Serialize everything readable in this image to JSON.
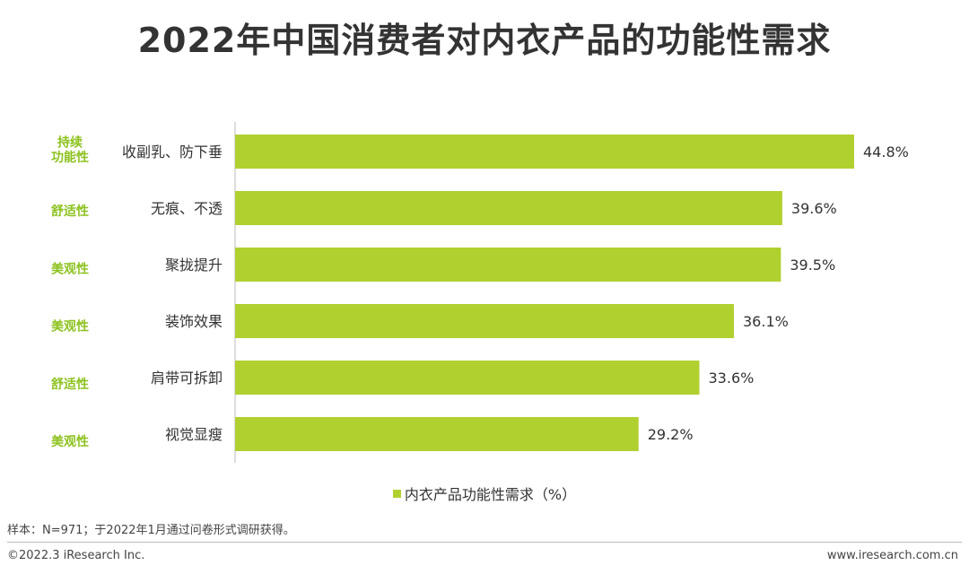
{
  "title": "2022年中国消费者对内衣产品的功能性需求",
  "chart_data": {
    "type": "bar",
    "orientation": "horizontal",
    "categories": [
      "收副乳、防下垂",
      "无痕、不透",
      "聚拢提升",
      "装饰效果",
      "肩带可拆卸",
      "视觉显瘦"
    ],
    "groups": [
      "持续\n功能性",
      "舒适性",
      "美观性",
      "美观性",
      "舒适性",
      "美观性"
    ],
    "series": [
      {
        "name": "内衣产品功能性需求（%）",
        "values": [
          44.8,
          39.6,
          39.5,
          36.1,
          33.6,
          29.2
        ],
        "labels": [
          "44.8%",
          "39.6%",
          "39.5%",
          "36.1%",
          "33.6%",
          "29.2%"
        ]
      }
    ],
    "legend_position": "bottom",
    "grid": false,
    "colors": {
      "bar": "#b0d030",
      "group_label": "#8dc21f"
    }
  },
  "footnote": "样本：N=971；于2022年1月通过问卷形式调研获得。",
  "copyright": "©2022.3 iResearch Inc.",
  "website": "www.iresearch.com.cn"
}
